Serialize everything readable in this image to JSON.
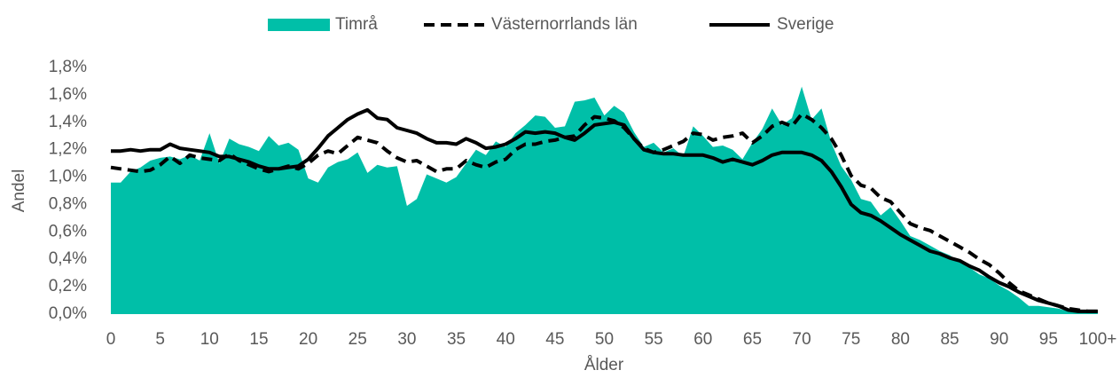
{
  "chart_data": {
    "type": "line",
    "xlabel": "Ålder",
    "ylabel": "Andel",
    "categories": [
      "0",
      null,
      null,
      null,
      null,
      "5",
      null,
      null,
      null,
      null,
      "10",
      null,
      null,
      null,
      null,
      "15",
      null,
      null,
      null,
      null,
      "20",
      null,
      null,
      null,
      null,
      "25",
      null,
      null,
      null,
      null,
      "30",
      null,
      null,
      null,
      null,
      "35",
      null,
      null,
      null,
      null,
      "40",
      null,
      null,
      null,
      null,
      "45",
      null,
      null,
      null,
      null,
      "50",
      null,
      null,
      null,
      null,
      "55",
      null,
      null,
      null,
      null,
      "60",
      null,
      null,
      null,
      null,
      "65",
      null,
      null,
      null,
      null,
      "70",
      null,
      null,
      null,
      null,
      "75",
      null,
      null,
      null,
      null,
      "80",
      null,
      null,
      null,
      null,
      "85",
      null,
      null,
      null,
      null,
      "90",
      null,
      null,
      null,
      null,
      "95",
      null,
      null,
      null,
      null,
      "100+"
    ],
    "ylim": [
      0,
      1.8
    ],
    "yticks": [
      {
        "value": 0,
        "label": "0,0%"
      },
      {
        "value": 0.2,
        "label": "0,2%"
      },
      {
        "value": 0.4,
        "label": "0,4%"
      },
      {
        "value": 0.6,
        "label": "0,6%"
      },
      {
        "value": 0.8,
        "label": "0,8%"
      },
      {
        "value": 1.0,
        "label": "1,0%"
      },
      {
        "value": 1.2,
        "label": "1,2%"
      },
      {
        "value": 1.4,
        "label": "1,4%"
      },
      {
        "value": 1.6,
        "label": "1,6%"
      },
      {
        "value": 1.8,
        "label": "1,8%"
      }
    ],
    "legend": "top",
    "series": [
      {
        "name": "Timrå",
        "color": "#00bfa8",
        "style": "area",
        "values": [
          0.96,
          0.96,
          1.04,
          1.07,
          1.12,
          1.14,
          1.15,
          1.13,
          1.16,
          1.12,
          1.32,
          1.1,
          1.28,
          1.24,
          1.22,
          1.19,
          1.3,
          1.23,
          1.25,
          1.2,
          0.99,
          0.96,
          1.07,
          1.11,
          1.13,
          1.18,
          1.03,
          1.09,
          1.07,
          1.08,
          0.79,
          0.84,
          1.02,
          0.99,
          0.96,
          1.0,
          1.1,
          1.2,
          1.16,
          1.26,
          1.22,
          1.32,
          1.38,
          1.45,
          1.44,
          1.36,
          1.37,
          1.55,
          1.56,
          1.58,
          1.45,
          1.52,
          1.47,
          1.33,
          1.22,
          1.25,
          1.18,
          1.21,
          1.15,
          1.37,
          1.3,
          1.22,
          1.23,
          1.2,
          1.13,
          1.25,
          1.35,
          1.5,
          1.38,
          1.43,
          1.66,
          1.42,
          1.5,
          1.25,
          1.08,
          0.98,
          0.84,
          0.82,
          0.72,
          0.78,
          0.68,
          0.57,
          0.54,
          0.5,
          0.46,
          0.43,
          0.38,
          0.34,
          0.29,
          0.26,
          0.21,
          0.17,
          0.12,
          0.06,
          0.06,
          0.05,
          0.04,
          0.02,
          0.01,
          0.01,
          0.02
        ]
      },
      {
        "name": "Västernorrlands län",
        "color": "#000000",
        "style": "dashed",
        "values": [
          1.07,
          1.06,
          1.05,
          1.04,
          1.05,
          1.09,
          1.15,
          1.1,
          1.16,
          1.14,
          1.13,
          1.12,
          1.17,
          1.12,
          1.09,
          1.06,
          1.04,
          1.06,
          1.08,
          1.06,
          1.1,
          1.16,
          1.19,
          1.17,
          1.23,
          1.29,
          1.27,
          1.25,
          1.19,
          1.14,
          1.11,
          1.12,
          1.08,
          1.04,
          1.06,
          1.06,
          1.12,
          1.09,
          1.07,
          1.11,
          1.13,
          1.2,
          1.24,
          1.24,
          1.26,
          1.27,
          1.29,
          1.3,
          1.38,
          1.44,
          1.43,
          1.41,
          1.36,
          1.28,
          1.21,
          1.18,
          1.2,
          1.23,
          1.26,
          1.32,
          1.31,
          1.27,
          1.29,
          1.3,
          1.32,
          1.25,
          1.3,
          1.37,
          1.4,
          1.37,
          1.46,
          1.42,
          1.36,
          1.28,
          1.16,
          1.01,
          0.94,
          0.92,
          0.85,
          0.82,
          0.74,
          0.66,
          0.63,
          0.61,
          0.57,
          0.53,
          0.49,
          0.45,
          0.4,
          0.36,
          0.3,
          0.23,
          0.17,
          0.14,
          0.11,
          0.08,
          0.06,
          0.04,
          0.03,
          0.02,
          0.02
        ]
      },
      {
        "name": "Sverige",
        "color": "#000000",
        "style": "solid",
        "values": [
          1.19,
          1.19,
          1.2,
          1.19,
          1.2,
          1.2,
          1.24,
          1.21,
          1.2,
          1.19,
          1.18,
          1.15,
          1.15,
          1.13,
          1.11,
          1.08,
          1.06,
          1.06,
          1.07,
          1.08,
          1.13,
          1.21,
          1.3,
          1.36,
          1.42,
          1.46,
          1.49,
          1.43,
          1.42,
          1.36,
          1.34,
          1.32,
          1.28,
          1.25,
          1.25,
          1.24,
          1.28,
          1.25,
          1.21,
          1.22,
          1.24,
          1.28,
          1.33,
          1.32,
          1.33,
          1.32,
          1.29,
          1.27,
          1.32,
          1.38,
          1.39,
          1.4,
          1.38,
          1.28,
          1.2,
          1.18,
          1.17,
          1.17,
          1.16,
          1.16,
          1.16,
          1.14,
          1.11,
          1.13,
          1.11,
          1.09,
          1.12,
          1.16,
          1.18,
          1.18,
          1.18,
          1.16,
          1.12,
          1.04,
          0.93,
          0.8,
          0.74,
          0.72,
          0.68,
          0.63,
          0.58,
          0.54,
          0.5,
          0.46,
          0.44,
          0.41,
          0.39,
          0.35,
          0.32,
          0.27,
          0.23,
          0.2,
          0.16,
          0.13,
          0.1,
          0.08,
          0.06,
          0.03,
          0.02,
          0.02,
          0.02
        ]
      }
    ]
  }
}
